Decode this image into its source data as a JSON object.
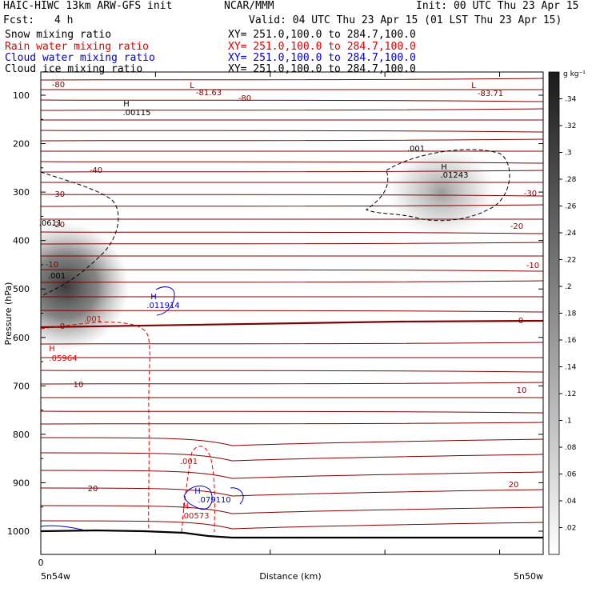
{
  "header": {
    "title": "HAIC-HIWC 13km ARW-GFS init",
    "org": "NCAR/MMM",
    "init": "Init: 00 UTC Thu 23 Apr 15",
    "fcst_label": "Fcst:",
    "fcst_value": "4 h",
    "valid": "Valid: 04 UTC Thu 23 Apr 15 (01 LST Thu 23 Apr 15)"
  },
  "fields": [
    {
      "name": "Snow mixing ratio",
      "xy": "XY= 251.0,100.0 to 284.7,100.0",
      "color": "#000000"
    },
    {
      "name": "Rain water mixing ratio",
      "xy": "XY= 251.0,100.0 to 284.7,100.0",
      "color": "#e00000"
    },
    {
      "name": "Cloud water mixing ratio",
      "xy": "XY= 251.0,100.0 to 284.7,100.0",
      "color": "#0000cc"
    },
    {
      "name": "Cloud ice mixing ratio",
      "xy": "XY= 251.0,100.0 to 284.7,100.0",
      "color": "#000000"
    }
  ],
  "chart_data": {
    "type": "cross-section",
    "ylabel": "Pressure (hPa)",
    "xlabel": "Distance (km)",
    "x_tick": "0",
    "x_left_label": "5n54w",
    "x_right_label": "5n50w",
    "y_ticks": [
      100,
      200,
      300,
      400,
      500,
      600,
      700,
      800,
      900,
      1000
    ],
    "colorbar_unit": "g kg⁻¹",
    "colorbar_ticks": [
      ".02",
      ".04",
      ".06",
      ".08",
      ".1",
      ".12",
      ".14",
      ".16",
      ".18",
      ".2",
      ".22",
      ".24",
      ".26",
      ".28",
      ".3",
      ".32",
      ".34"
    ],
    "temperature_labels": [
      "-80",
      "-81.63",
      "-80",
      "-83.71",
      "-40",
      "-30",
      "-30",
      "-20",
      "-20",
      "-10",
      "-10",
      "0",
      "0",
      "10",
      "10",
      "20",
      "20"
    ],
    "annotations": [
      {
        "text": "L",
        "color": "#800000"
      },
      {
        "text": "L",
        "color": "#800000"
      },
      {
        "text": "H",
        "color": "#000000"
      },
      {
        "text": ".00115",
        "color": "#000000"
      },
      {
        "text": ".001",
        "color": "#000000"
      },
      {
        "text": "H",
        "color": "#000000"
      },
      {
        "text": ".01243",
        "color": "#000000"
      },
      {
        "text": ".0611",
        "color": "#000000"
      },
      {
        "text": ".001",
        "color": "#000000"
      },
      {
        "text": "H",
        "color": "#0000cc"
      },
      {
        "text": ".011914",
        "color": "#0000cc"
      },
      {
        "text": ".001",
        "color": "#e00000"
      },
      {
        "text": "H",
        "color": "#e00000"
      },
      {
        "text": ".05964",
        "color": "#e00000"
      },
      {
        "text": ".001",
        "color": "#e00000"
      },
      {
        "text": "H",
        "color": "#e00000"
      },
      {
        "text": ".00573",
        "color": "#e00000"
      },
      {
        "text": "H",
        "color": "#0000cc"
      },
      {
        "text": ".079110",
        "color": "#0000cc"
      }
    ]
  }
}
